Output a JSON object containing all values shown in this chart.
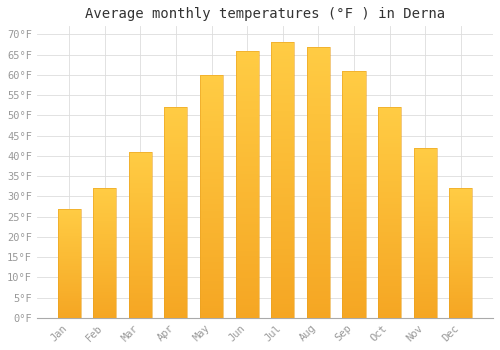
{
  "title": "Average monthly temperatures (°F ) in Derna",
  "months": [
    "Jan",
    "Feb",
    "Mar",
    "Apr",
    "May",
    "Jun",
    "Jul",
    "Aug",
    "Sep",
    "Oct",
    "Nov",
    "Dec"
  ],
  "values": [
    27,
    32,
    41,
    52,
    60,
    66,
    68,
    67,
    61,
    52,
    42,
    32
  ],
  "bar_color_top": "#FFCC44",
  "bar_color_bottom": "#F5A623",
  "bar_edge_color": "#E8A020",
  "background_color": "#FFFFFF",
  "grid_color": "#DDDDDD",
  "ylim": [
    0,
    72
  ],
  "yticks": [
    0,
    5,
    10,
    15,
    20,
    25,
    30,
    35,
    40,
    45,
    50,
    55,
    60,
    65,
    70
  ],
  "title_fontsize": 10,
  "tick_fontsize": 7.5,
  "tick_color": "#999999",
  "font_family": "monospace",
  "bar_width": 0.65
}
